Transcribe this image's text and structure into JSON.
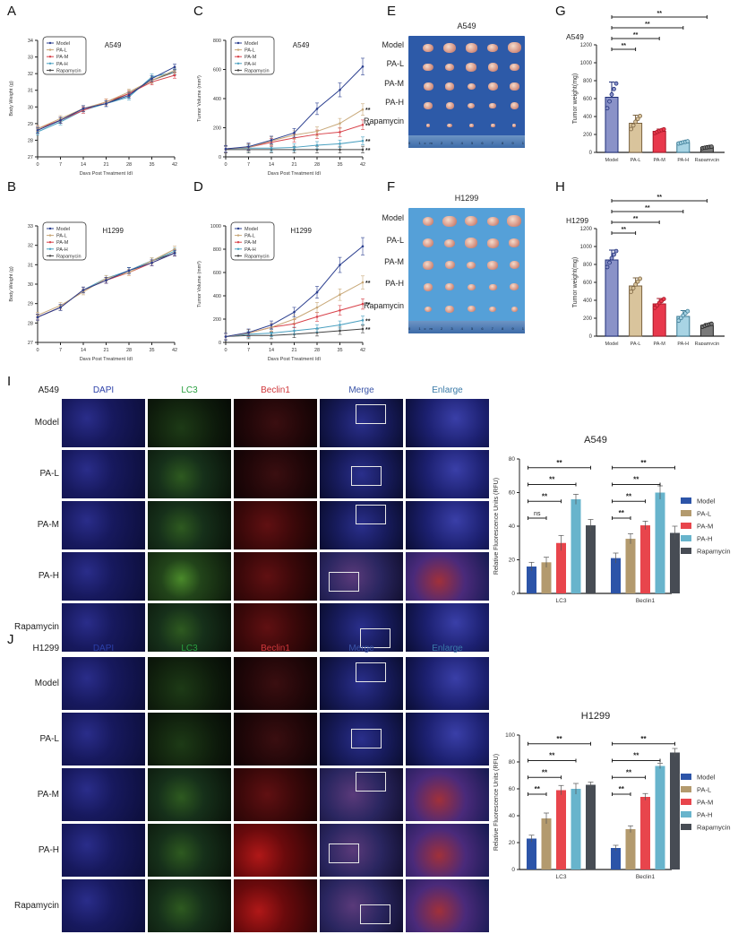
{
  "panels": {
    "A": {
      "letter": "A",
      "title": "A549"
    },
    "B": {
      "letter": "B",
      "title": "H1299"
    },
    "C": {
      "letter": "C",
      "title": "A549"
    },
    "D": {
      "letter": "D",
      "title": "H1299"
    },
    "E": {
      "letter": "E",
      "title": "A549"
    },
    "F": {
      "letter": "F",
      "title": "H1299"
    },
    "G": {
      "letter": "G",
      "title": "A549"
    },
    "H": {
      "letter": "H",
      "title": "H1299"
    },
    "I": {
      "letter": "I",
      "cell_line": "A549",
      "chart_title": "A549"
    },
    "J": {
      "letter": "J",
      "cell_line": "H1299",
      "chart_title": "H1299"
    }
  },
  "groups": [
    "Model",
    "PA-L",
    "PA-M",
    "PA-H",
    "Rapamycin"
  ],
  "colors": {
    "line": {
      "Model": "#2b3f8f",
      "PA-L": "#c8a878",
      "PA-M": "#d8424a",
      "PA-H": "#4aa0c0",
      "Rapamycin": "#444444"
    },
    "tw_fill": {
      "Model": "#8a92c8",
      "PA-L": "#d9c49c",
      "PA-M": "#e8384c",
      "PA-H": "#a8d4e4",
      "Rapamycin": "#7a7a7a"
    },
    "tw_edge": {
      "Model": "#1e2e78",
      "PA-L": "#7a6240",
      "PA-M": "#a81828",
      "PA-H": "#3a7a94",
      "Rapamycin": "#222222"
    },
    "rfu": {
      "Model": "#2c54a8",
      "PA-L": "#b39a6e",
      "PA-M": "#e8454c",
      "PA-H": "#68b4cc",
      "Rapamycin": "#474c54"
    },
    "photo_bg_E": "#2d5aa8",
    "photo_bg_F": "#55a0d8"
  },
  "microscopy": {
    "channels": [
      "DAPI",
      "LC3",
      "Beclin1",
      "Merge",
      "Enlarge"
    ],
    "channel_colors": [
      "#2b3fa8",
      "#2aa040",
      "#d0383c",
      "#3a54a8",
      "#3a7aa8"
    ],
    "rows": [
      "Model",
      "PA-L",
      "PA-M",
      "PA-H",
      "Rapamycin"
    ]
  },
  "ruler_labels": "0 1cm 2 3 4 5 6 7 8 9 10 11 12 13 14",
  "chart_data": [
    {
      "id": "A",
      "type": "line",
      "title": "A549",
      "xlabel": "Days Post Treatment (d)",
      "ylabel": "Body Weight (g)",
      "x": [
        0,
        7,
        14,
        21,
        28,
        35,
        42
      ],
      "ylim": [
        27,
        34
      ],
      "yticks": [
        27,
        28,
        29,
        30,
        31,
        32,
        33,
        34
      ],
      "legend": "top-left boxed",
      "series": [
        {
          "name": "Model",
          "values": [
            28.6,
            29.2,
            29.9,
            30.2,
            30.7,
            31.7,
            32.4
          ]
        },
        {
          "name": "PA-L",
          "values": [
            28.7,
            29.3,
            29.9,
            30.3,
            30.9,
            31.6,
            32.2
          ]
        },
        {
          "name": "PA-M",
          "values": [
            28.7,
            29.2,
            29.8,
            30.3,
            30.8,
            31.5,
            31.9
          ]
        },
        {
          "name": "PA-H",
          "values": [
            28.5,
            29.1,
            29.8,
            30.2,
            30.6,
            31.8,
            32.1
          ]
        },
        {
          "name": "Rapamycin",
          "values": [
            28.6,
            29.2,
            29.9,
            30.2,
            30.8,
            31.6,
            32.1
          ]
        }
      ]
    },
    {
      "id": "B",
      "type": "line",
      "title": "H1299",
      "xlabel": "Days Post Treatment (d)",
      "ylabel": "Body Weight (g)",
      "x": [
        0,
        7,
        14,
        21,
        28,
        35,
        42
      ],
      "ylim": [
        27,
        33
      ],
      "yticks": [
        27,
        28,
        29,
        30,
        31,
        32,
        33
      ],
      "legend": "top-left boxed",
      "series": [
        {
          "name": "Model",
          "values": [
            28.3,
            28.8,
            29.7,
            30.2,
            30.7,
            31.1,
            31.6
          ]
        },
        {
          "name": "PA-L",
          "values": [
            28.4,
            28.9,
            29.6,
            30.3,
            30.6,
            31.2,
            31.8
          ]
        },
        {
          "name": "PA-M",
          "values": [
            28.3,
            28.8,
            29.7,
            30.2,
            30.6,
            31.1,
            31.6
          ]
        },
        {
          "name": "PA-H",
          "values": [
            28.3,
            28.8,
            29.7,
            30.3,
            30.7,
            31.2,
            31.7
          ]
        },
        {
          "name": "Rapamycin",
          "values": [
            28.3,
            28.8,
            29.7,
            30.2,
            30.7,
            31.2,
            31.6
          ]
        }
      ]
    },
    {
      "id": "C",
      "type": "line",
      "title": "A549",
      "xlabel": "Days Post Treatment (d)",
      "ylabel": "Tumor Volume (mm³)",
      "x": [
        0,
        7,
        14,
        21,
        28,
        35,
        42
      ],
      "ylim": [
        0,
        800
      ],
      "yticks": [
        0,
        200,
        400,
        600,
        800
      ],
      "legend": "top-left boxed",
      "annotations": [
        "**",
        "**",
        "**",
        "**"
      ],
      "series": [
        {
          "name": "Model",
          "values": [
            55,
            70,
            115,
            165,
            330,
            460,
            620
          ]
        },
        {
          "name": "PA-L",
          "values": [
            55,
            65,
            110,
            150,
            175,
            230,
            325
          ]
        },
        {
          "name": "PA-M",
          "values": [
            55,
            65,
            100,
            130,
            155,
            170,
            220
          ]
        },
        {
          "name": "PA-H",
          "values": [
            55,
            60,
            60,
            65,
            80,
            90,
            110
          ]
        },
        {
          "name": "Rapamycin",
          "values": [
            50,
            50,
            50,
            50,
            50,
            50,
            50
          ]
        }
      ]
    },
    {
      "id": "D",
      "type": "line",
      "title": "H1299",
      "xlabel": "Days Post Treatment (d)",
      "ylabel": "Tumor Volume (mm³)",
      "x": [
        0,
        7,
        14,
        21,
        28,
        35,
        42
      ],
      "ylim": [
        0,
        1000
      ],
      "yticks": [
        0,
        200,
        400,
        600,
        800,
        1000
      ],
      "legend": "top-left boxed",
      "annotations": [
        "**",
        "**",
        "**",
        "**"
      ],
      "series": [
        {
          "name": "Model",
          "values": [
            50,
            85,
            150,
            260,
            430,
            665,
            825
          ]
        },
        {
          "name": "PA-L",
          "values": [
            50,
            80,
            130,
            200,
            300,
            410,
            515
          ]
        },
        {
          "name": "PA-M",
          "values": [
            50,
            80,
            130,
            160,
            220,
            275,
            330
          ]
        },
        {
          "name": "PA-H",
          "values": [
            50,
            70,
            80,
            100,
            120,
            150,
            190
          ]
        },
        {
          "name": "Rapamycin",
          "values": [
            50,
            60,
            60,
            70,
            85,
            100,
            115
          ]
        }
      ]
    },
    {
      "id": "G",
      "type": "bar",
      "title": "A549",
      "ylabel": "Tumor weight(mg)",
      "categories": [
        "Model",
        "PA-L",
        "PA-M",
        "PA-H",
        "Rapamycin"
      ],
      "values": [
        615,
        325,
        235,
        110,
        55
      ],
      "errors": [
        170,
        90,
        25,
        15,
        10
      ],
      "ylim": [
        0,
        1200
      ],
      "yticks": [
        0,
        200,
        400,
        600,
        800,
        1000,
        1200
      ],
      "significance": [
        "**",
        "**",
        "**",
        "**"
      ]
    },
    {
      "id": "H",
      "type": "bar",
      "title": "H1299",
      "ylabel": "Tumor weight(mg)",
      "categories": [
        "Model",
        "PA-L",
        "PA-M",
        "PA-H",
        "Rapamycin"
      ],
      "values": [
        850,
        560,
        360,
        220,
        120
      ],
      "errors": [
        110,
        90,
        60,
        65,
        20
      ],
      "ylim": [
        0,
        1200
      ],
      "yticks": [
        0,
        200,
        400,
        600,
        800,
        1000,
        1200
      ],
      "significance": [
        "**",
        "**",
        "**",
        "**"
      ]
    },
    {
      "id": "I",
      "type": "bar",
      "title": "A549",
      "ylabel": "Relative Fluorescence Units (RFU)",
      "categories": [
        "LC3",
        "Beclin1"
      ],
      "ylim": [
        0,
        80
      ],
      "yticks": [
        0,
        20,
        40,
        60,
        80
      ],
      "series": [
        {
          "name": "Model",
          "values": [
            16,
            21
          ],
          "errors": [
            2.5,
            3
          ]
        },
        {
          "name": "PA-L",
          "values": [
            18.5,
            32.5
          ],
          "errors": [
            3,
            3
          ]
        },
        {
          "name": "PA-M",
          "values": [
            30,
            40.5
          ],
          "errors": [
            4.5,
            2.5
          ]
        },
        {
          "name": "PA-H",
          "values": [
            56,
            60
          ],
          "errors": [
            3,
            4
          ]
        },
        {
          "name": "Rapamycin",
          "values": [
            40.5,
            36
          ],
          "errors": [
            3.5,
            4
          ]
        }
      ],
      "significance": {
        "LC3": [
          "ns",
          "**",
          "**",
          "**"
        ],
        "Beclin1": [
          "**",
          "**",
          "**",
          "**"
        ]
      },
      "legend": "right"
    },
    {
      "id": "J",
      "type": "bar",
      "title": "H1299",
      "ylabel": "Relative Fluorescence Units (RFU)",
      "categories": [
        "LC3",
        "Beclin1"
      ],
      "ylim": [
        0,
        100
      ],
      "yticks": [
        0,
        20,
        40,
        60,
        80,
        100
      ],
      "series": [
        {
          "name": "Model",
          "values": [
            23,
            16
          ],
          "errors": [
            2.5,
            2
          ]
        },
        {
          "name": "PA-L",
          "values": [
            38,
            30
          ],
          "errors": [
            4,
            2.5
          ]
        },
        {
          "name": "PA-M",
          "values": [
            59,
            54
          ],
          "errors": [
            3.5,
            2.5
          ]
        },
        {
          "name": "PA-H",
          "values": [
            60,
            77
          ],
          "errors": [
            4,
            2
          ]
        },
        {
          "name": "Rapamycin",
          "values": [
            63,
            87
          ],
          "errors": [
            2,
            3
          ]
        }
      ],
      "significance": {
        "LC3": [
          "**",
          "**",
          "**",
          "**"
        ],
        "Beclin1": [
          "**",
          "**",
          "**",
          "**"
        ]
      },
      "legend": "right"
    }
  ]
}
